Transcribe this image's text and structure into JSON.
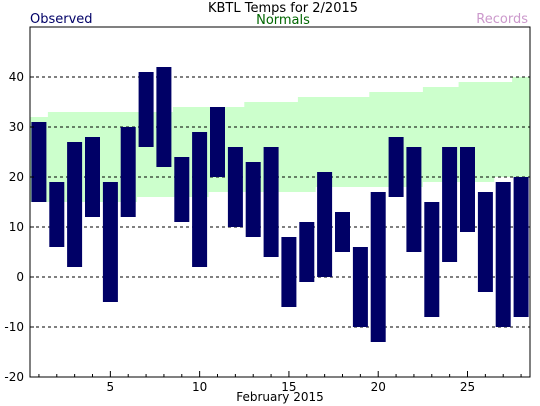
{
  "chart_data": {
    "type": "bar",
    "title": "KBTL Temps for  2/2015",
    "xlabel": "February 2015",
    "ylabel": "",
    "legend": {
      "observed": "Observed",
      "normals": "Normals",
      "records": "Records"
    },
    "colors": {
      "observed": "#000066",
      "normals": "#006600",
      "records": "#cc99cc",
      "normals_band": "#ccffcc"
    },
    "xlim": [
      0.5,
      28.5
    ],
    "ylim": [
      -20,
      50
    ],
    "x_ticks": [
      5,
      10,
      15,
      20,
      25
    ],
    "y_ticks": [
      -20,
      -10,
      0,
      10,
      20,
      30,
      40
    ],
    "grid_lines": [
      -10,
      0,
      10,
      20,
      30,
      40
    ],
    "normals": {
      "days": [
        1,
        2,
        3,
        4,
        5,
        6,
        7,
        8,
        9,
        10,
        11,
        12,
        13,
        14,
        15,
        16,
        17,
        18,
        19,
        20,
        21,
        22,
        23,
        24,
        25,
        26,
        27,
        28
      ],
      "low": [
        15,
        15,
        15,
        15,
        15,
        15,
        16,
        16,
        16,
        16,
        17,
        17,
        17,
        17,
        17,
        17,
        18,
        18,
        18,
        18,
        18,
        18,
        19,
        19,
        19,
        19,
        20,
        20
      ],
      "high": [
        32,
        33,
        33,
        33,
        33,
        33,
        33,
        33,
        34,
        34,
        34,
        34,
        35,
        35,
        35,
        36,
        36,
        36,
        36,
        37,
        37,
        37,
        38,
        38,
        39,
        39,
        39,
        40
      ]
    },
    "series": [
      {
        "name": "Observed",
        "days": [
          1,
          2,
          3,
          4,
          5,
          6,
          7,
          8,
          9,
          10,
          11,
          12,
          13,
          14,
          15,
          16,
          17,
          18,
          19,
          20,
          21,
          22,
          23,
          24,
          25,
          26,
          27,
          28
        ],
        "high": [
          31,
          19,
          27,
          28,
          19,
          30,
          41,
          42,
          24,
          29,
          34,
          26,
          23,
          26,
          8,
          11,
          21,
          13,
          6,
          17,
          28,
          26,
          15,
          26,
          26,
          17,
          19,
          20
        ],
        "low": [
          15,
          6,
          2,
          12,
          -5,
          12,
          26,
          22,
          11,
          2,
          20,
          10,
          8,
          4,
          -6,
          -1,
          0,
          5,
          -10,
          -13,
          16,
          5,
          -8,
          3,
          9,
          -3,
          -10,
          -8
        ]
      }
    ]
  }
}
